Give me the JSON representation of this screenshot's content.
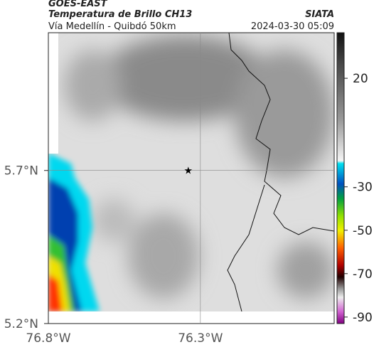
{
  "header": {
    "title": "GOES-EAST",
    "subtitle": "Temperatura de Brillo CH13",
    "source": "SIATA",
    "route": "Vía Medellín - Quibdó 50km",
    "datetime": "2024-03-30 05:09"
  },
  "map": {
    "xlim": [
      -76.8,
      -75.86
    ],
    "ylim": [
      5.2,
      6.15
    ],
    "xticks": [
      {
        "value": -76.8,
        "label": "76.8°W"
      },
      {
        "value": -76.3,
        "label": "76.3°W"
      }
    ],
    "yticks": [
      {
        "value": 5.2,
        "label": "5.2°N"
      },
      {
        "value": 5.7,
        "label": "5.7°N"
      }
    ],
    "grid": true,
    "marker": {
      "lon": -76.34,
      "lat": 5.7
    },
    "colorbar": {
      "lim": [
        41,
        -93
      ],
      "ticks": [
        20,
        -30,
        -50,
        -70,
        -90
      ]
    }
  }
}
